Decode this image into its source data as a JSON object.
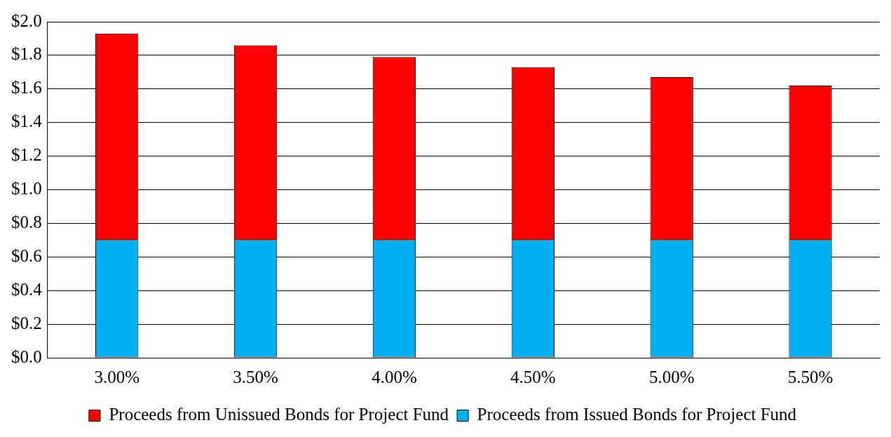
{
  "chart_data": {
    "type": "bar",
    "stacked": true,
    "categories": [
      "3.00%",
      "3.50%",
      "4.00%",
      "4.50%",
      "5.00%",
      "5.50%"
    ],
    "series": [
      {
        "name": "Proceeds from Issued Bonds for Project Fund",
        "color": "#00b0f0",
        "values": [
          0.7,
          0.7,
          0.7,
          0.7,
          0.7,
          0.7
        ]
      },
      {
        "name": "Proceeds from Unissued Bonds for Project Fund",
        "color": "#ff0000",
        "values": [
          1.23,
          1.16,
          1.09,
          1.03,
          0.97,
          0.92
        ]
      }
    ],
    "ylim": [
      0,
      2
    ],
    "yticks": [
      {
        "value": 0,
        "label": "$0.0"
      },
      {
        "value": 0.2,
        "label": "$0.2"
      },
      {
        "value": 0.4,
        "label": "$0.4"
      },
      {
        "value": 0.6,
        "label": "$0.6"
      },
      {
        "value": 0.8,
        "label": "$0.8"
      },
      {
        "value": 1.0,
        "label": "$1.0"
      },
      {
        "value": 1.2,
        "label": "$1.2"
      },
      {
        "value": 1.4,
        "label": "$1.4"
      },
      {
        "value": 1.6,
        "label": "$1.6"
      },
      {
        "value": 1.8,
        "label": "$1.8"
      },
      {
        "value": 2.0,
        "label": "$2.0"
      }
    ],
    "grid": "y",
    "legend": "bottom"
  }
}
